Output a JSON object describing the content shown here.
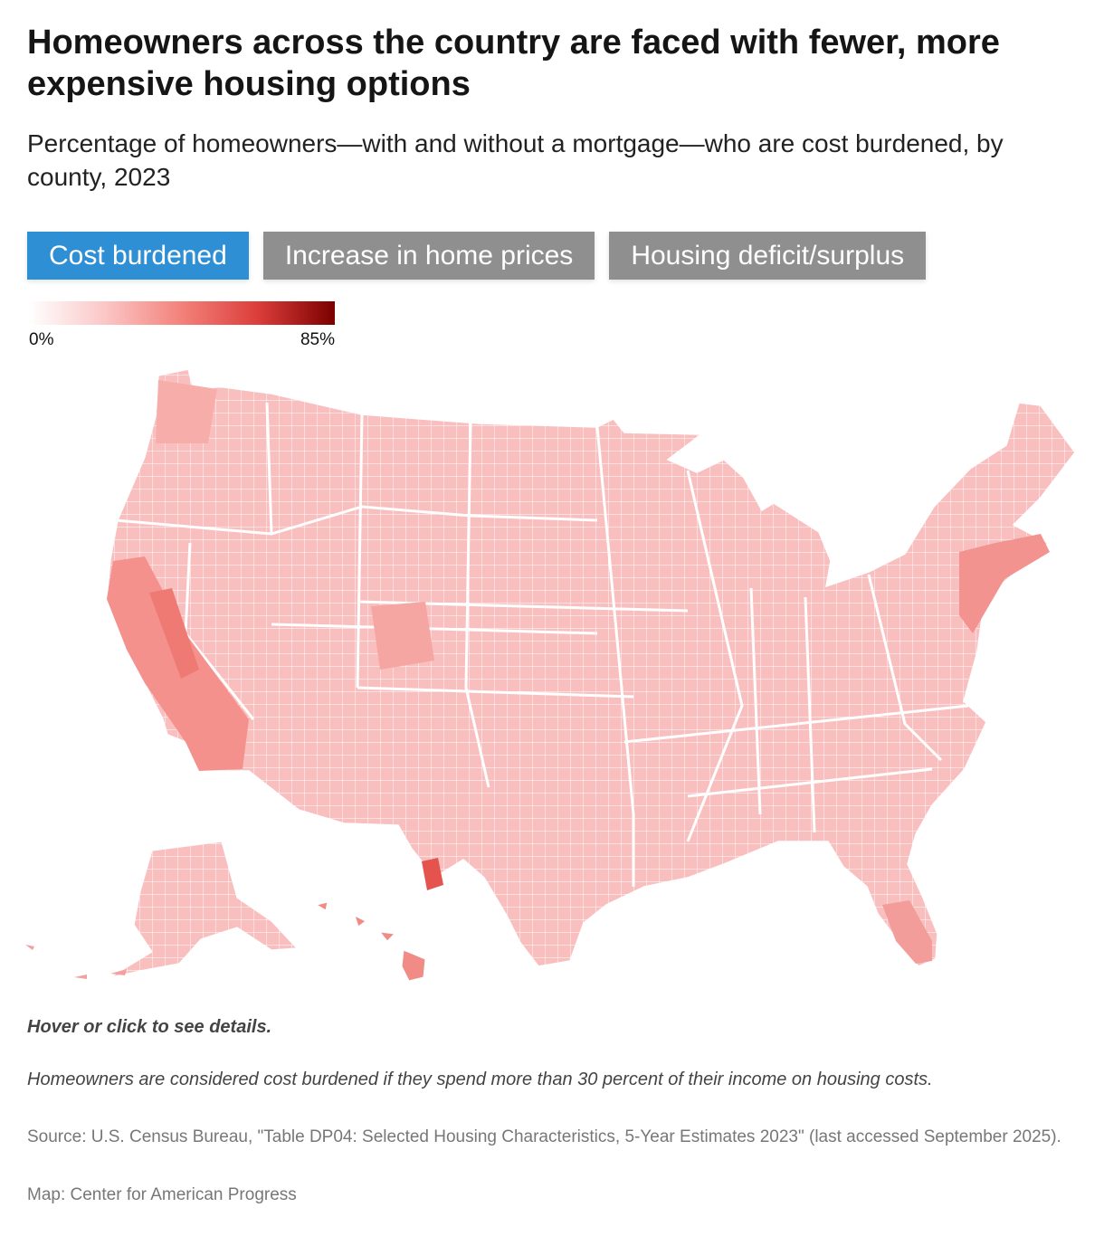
{
  "title": "Homeowners across the country are faced with fewer, more expensive housing options",
  "subtitle": "Percentage of homeowners—with and without a mortgage—who are cost burdened, by county, 2023",
  "tabs": [
    {
      "label": "Cost burdened",
      "active": true
    },
    {
      "label": "Increase in home prices",
      "active": false
    },
    {
      "label": "Housing deficit/surplus",
      "active": false
    }
  ],
  "legend": {
    "min_label": "0%",
    "max_label": "85%",
    "colors": [
      "#ffffff",
      "#fbc6c6",
      "#f3817a",
      "#db3d3a",
      "#7a0000"
    ]
  },
  "map": {
    "type": "choropleth",
    "geography": "U.S. counties",
    "metric": "Percent of homeowners cost burdened",
    "range": [
      0,
      85
    ],
    "typical_fill": "#f9bcbc",
    "border_color": "#ffffff"
  },
  "footer": {
    "interaction_note": "Hover or click to see details.",
    "definition": "Homeowners are considered cost burdened if they spend more than 30 percent of their income on housing costs.",
    "source": "Source: U.S. Census Bureau, \"Table DP04: Selected Housing Characteristics, 5-Year Estimates 2023\" (last accessed September 2025).",
    "credit": "Map: Center for American Progress"
  }
}
